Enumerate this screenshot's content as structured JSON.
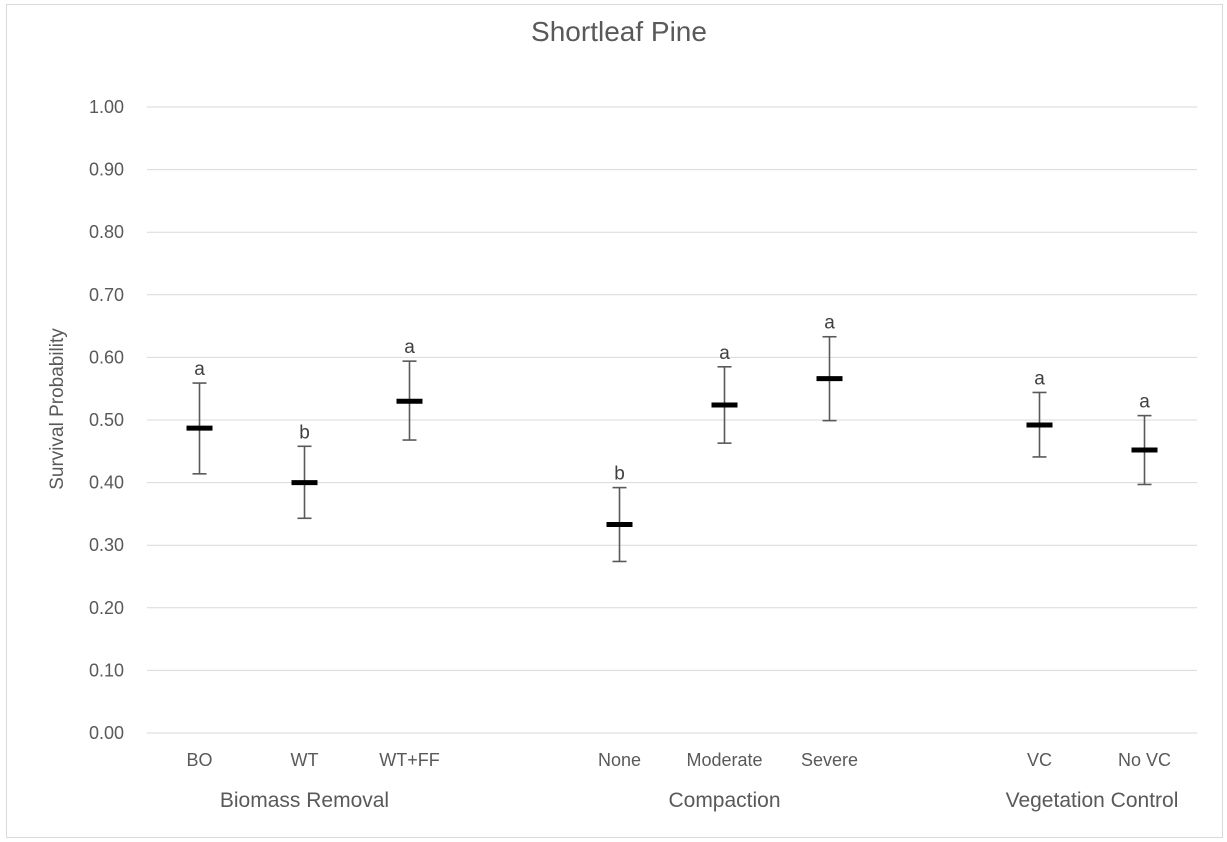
{
  "chart_data": {
    "type": "scatter",
    "title": "Shortleaf Pine",
    "ylabel": "Survival Probability",
    "xlabel": "",
    "ylim": [
      0,
      1
    ],
    "yticks": [
      "0.00",
      "0.10",
      "0.20",
      "0.30",
      "0.40",
      "0.50",
      "0.60",
      "0.70",
      "0.80",
      "0.90",
      "1.00"
    ],
    "grid": true,
    "groups": [
      {
        "name": "Biomass Removal",
        "categories": [
          "BO",
          "WT",
          "WT+FF"
        ]
      },
      {
        "name": "Compaction",
        "categories": [
          "None",
          "Moderate",
          "Severe"
        ]
      },
      {
        "name": "Vegetation Control",
        "categories": [
          "VC",
          "No VC"
        ]
      }
    ],
    "points": [
      {
        "category": "BO",
        "mean": 0.487,
        "lower": 0.414,
        "upper": 0.559,
        "letter": "a"
      },
      {
        "category": "WT",
        "mean": 0.4,
        "lower": 0.343,
        "upper": 0.458,
        "letter": "b"
      },
      {
        "category": "WT+FF",
        "mean": 0.53,
        "lower": 0.468,
        "upper": 0.594,
        "letter": "a"
      },
      {
        "category": "None",
        "mean": 0.333,
        "lower": 0.274,
        "upper": 0.392,
        "letter": "b"
      },
      {
        "category": "Moderate",
        "mean": 0.524,
        "lower": 0.463,
        "upper": 0.585,
        "letter": "a"
      },
      {
        "category": "Severe",
        "mean": 0.566,
        "lower": 0.499,
        "upper": 0.633,
        "letter": "a"
      },
      {
        "category": "VC",
        "mean": 0.492,
        "lower": 0.441,
        "upper": 0.544,
        "letter": "a"
      },
      {
        "category": "No VC",
        "mean": 0.452,
        "lower": 0.397,
        "upper": 0.507,
        "letter": "a"
      }
    ]
  }
}
